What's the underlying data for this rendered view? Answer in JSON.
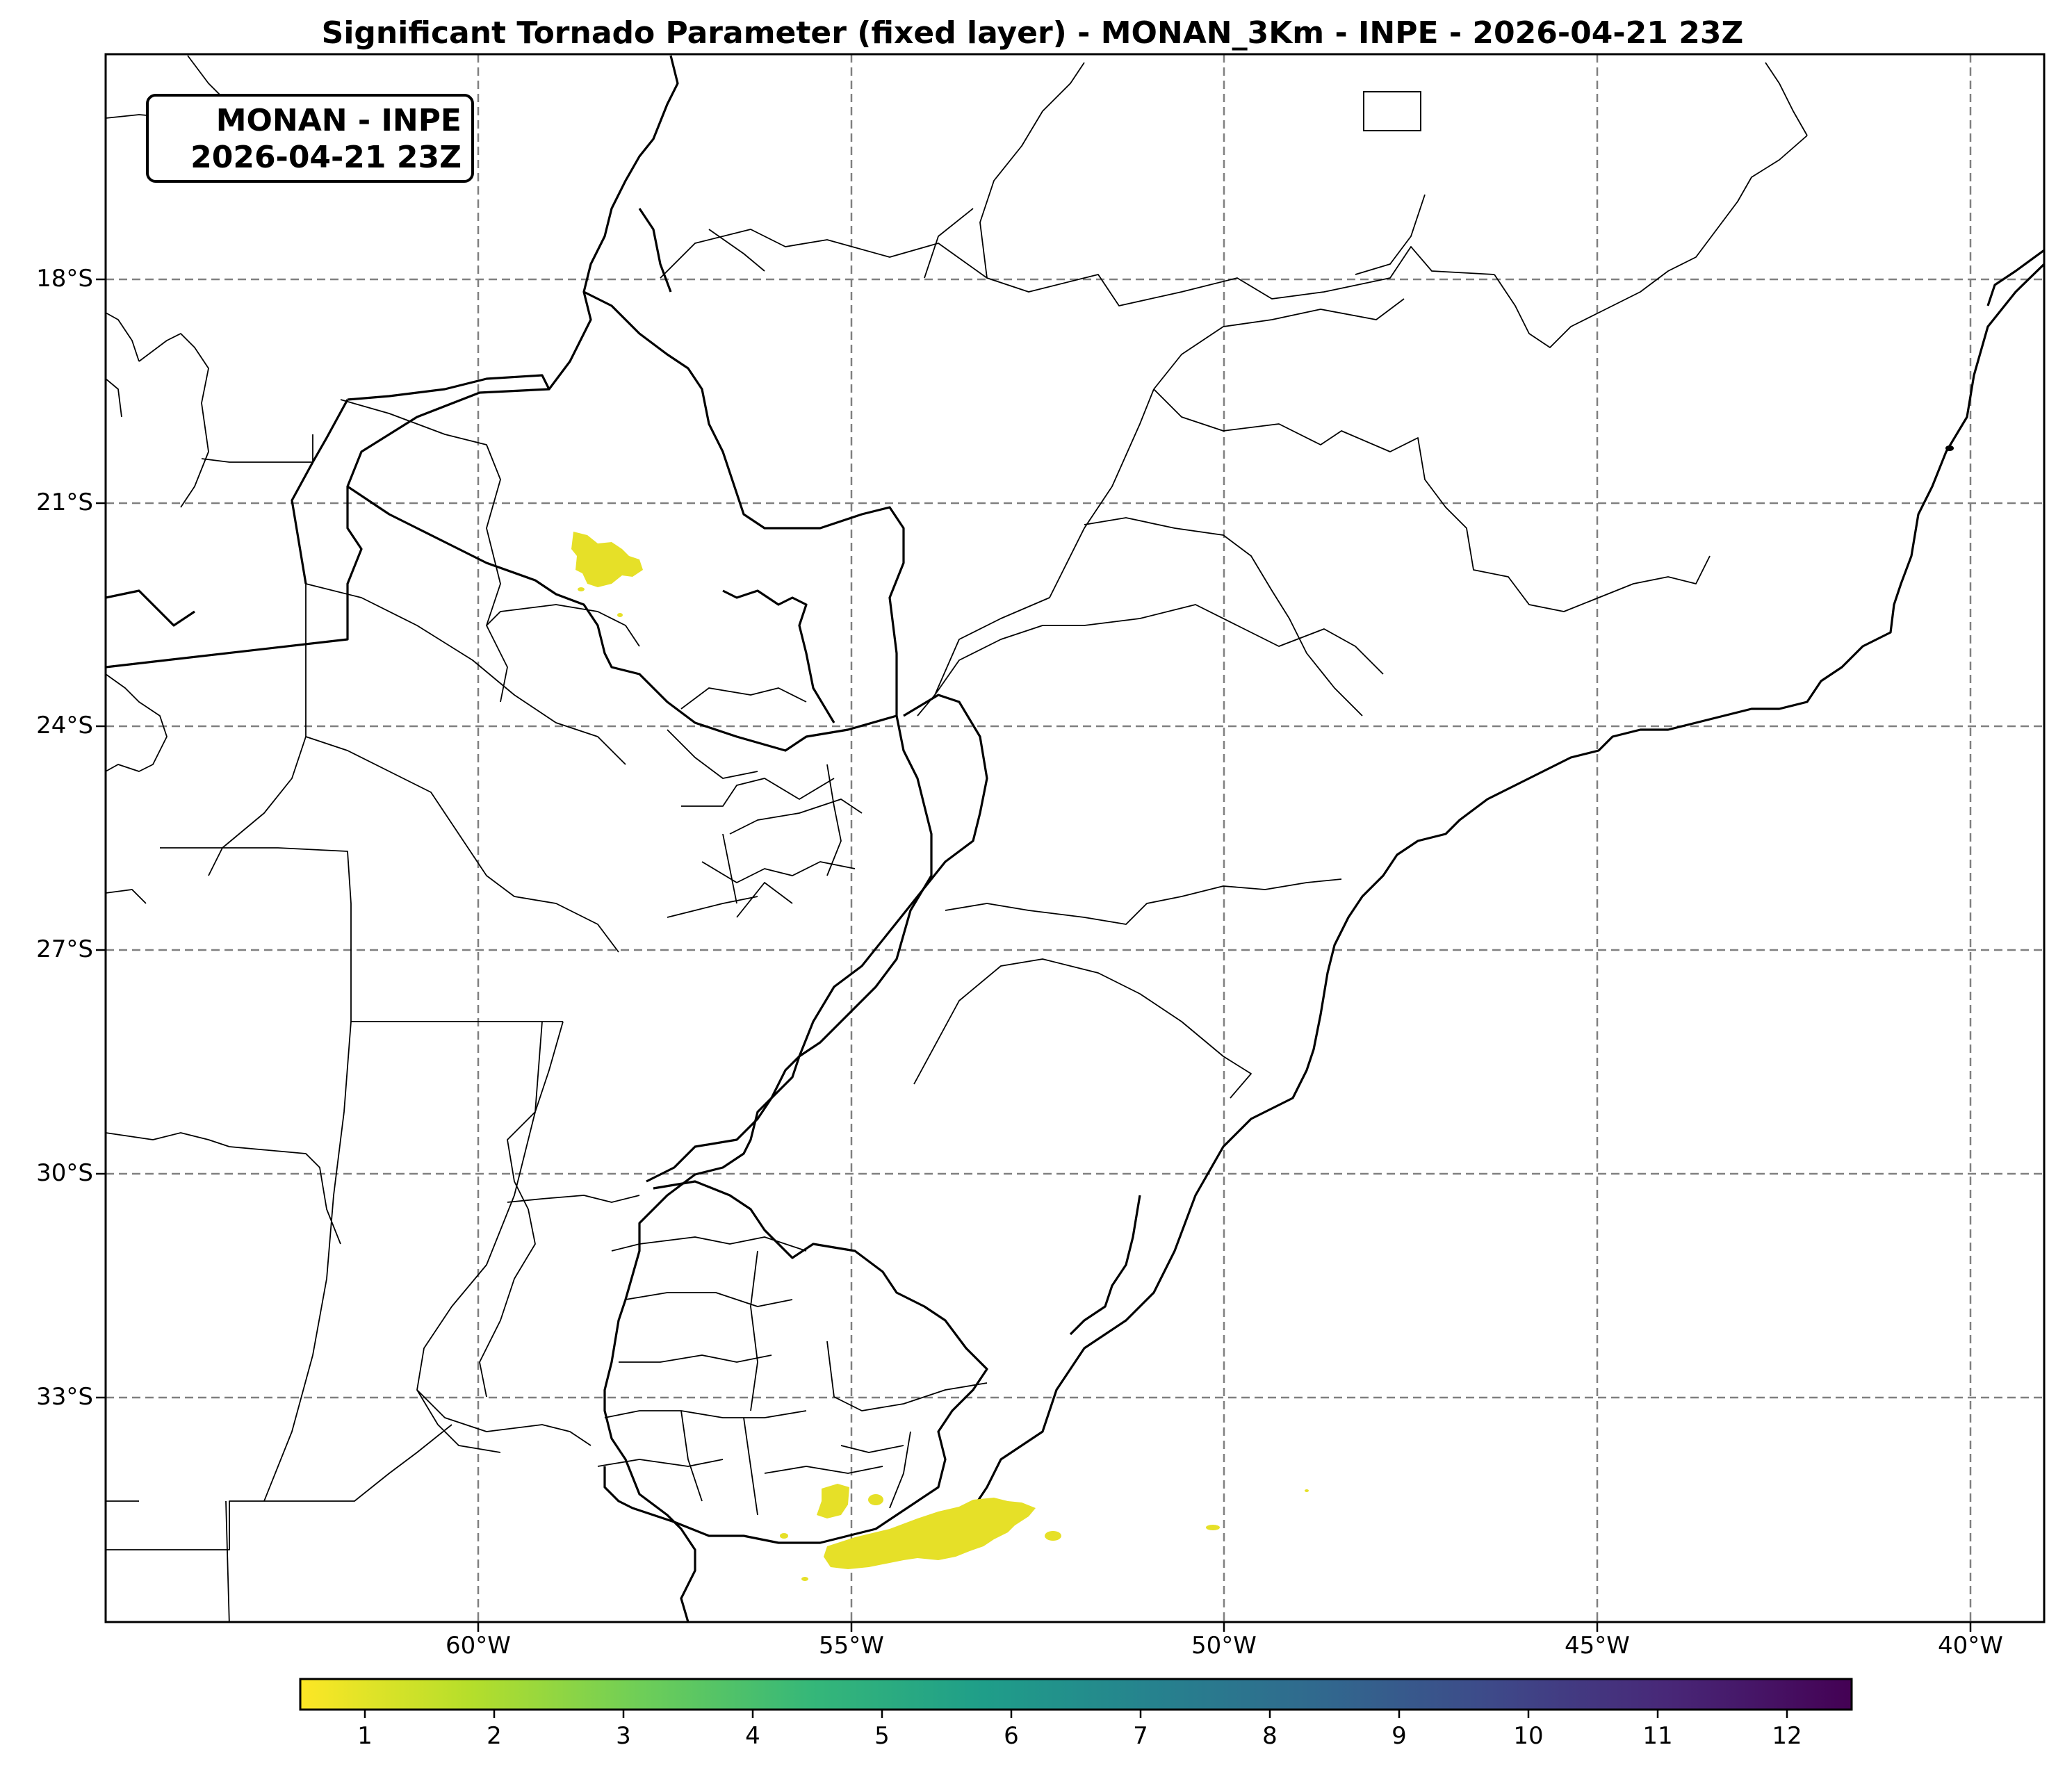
{
  "title": "Significant Tornado Parameter (fixed layer) - MONAN_3Km - INPE - 2026-04-21 23Z",
  "badge": {
    "line1": "MONAN - INPE",
    "line2": "2026-04-21 23Z"
  },
  "lat_labels": [
    "18°S",
    "21°S",
    "24°S",
    "27°S",
    "30°S",
    "33°S"
  ],
  "lon_labels": [
    "60°W",
    "55°W",
    "50°W",
    "45°W",
    "40°W"
  ],
  "colorbar": {
    "colormap": "viridis (reversed)",
    "ticks": [
      "1",
      "2",
      "3",
      "4",
      "5",
      "6",
      "7",
      "8",
      "9",
      "10",
      "11",
      "12"
    ],
    "range": [
      0.5,
      12.5
    ],
    "colors": [
      "#fde725",
      "#b5de2b",
      "#6ece58",
      "#35b779",
      "#1f9e89",
      "#26828e",
      "#31688e",
      "#3e4989",
      "#482878",
      "#440154"
    ]
  }
}
